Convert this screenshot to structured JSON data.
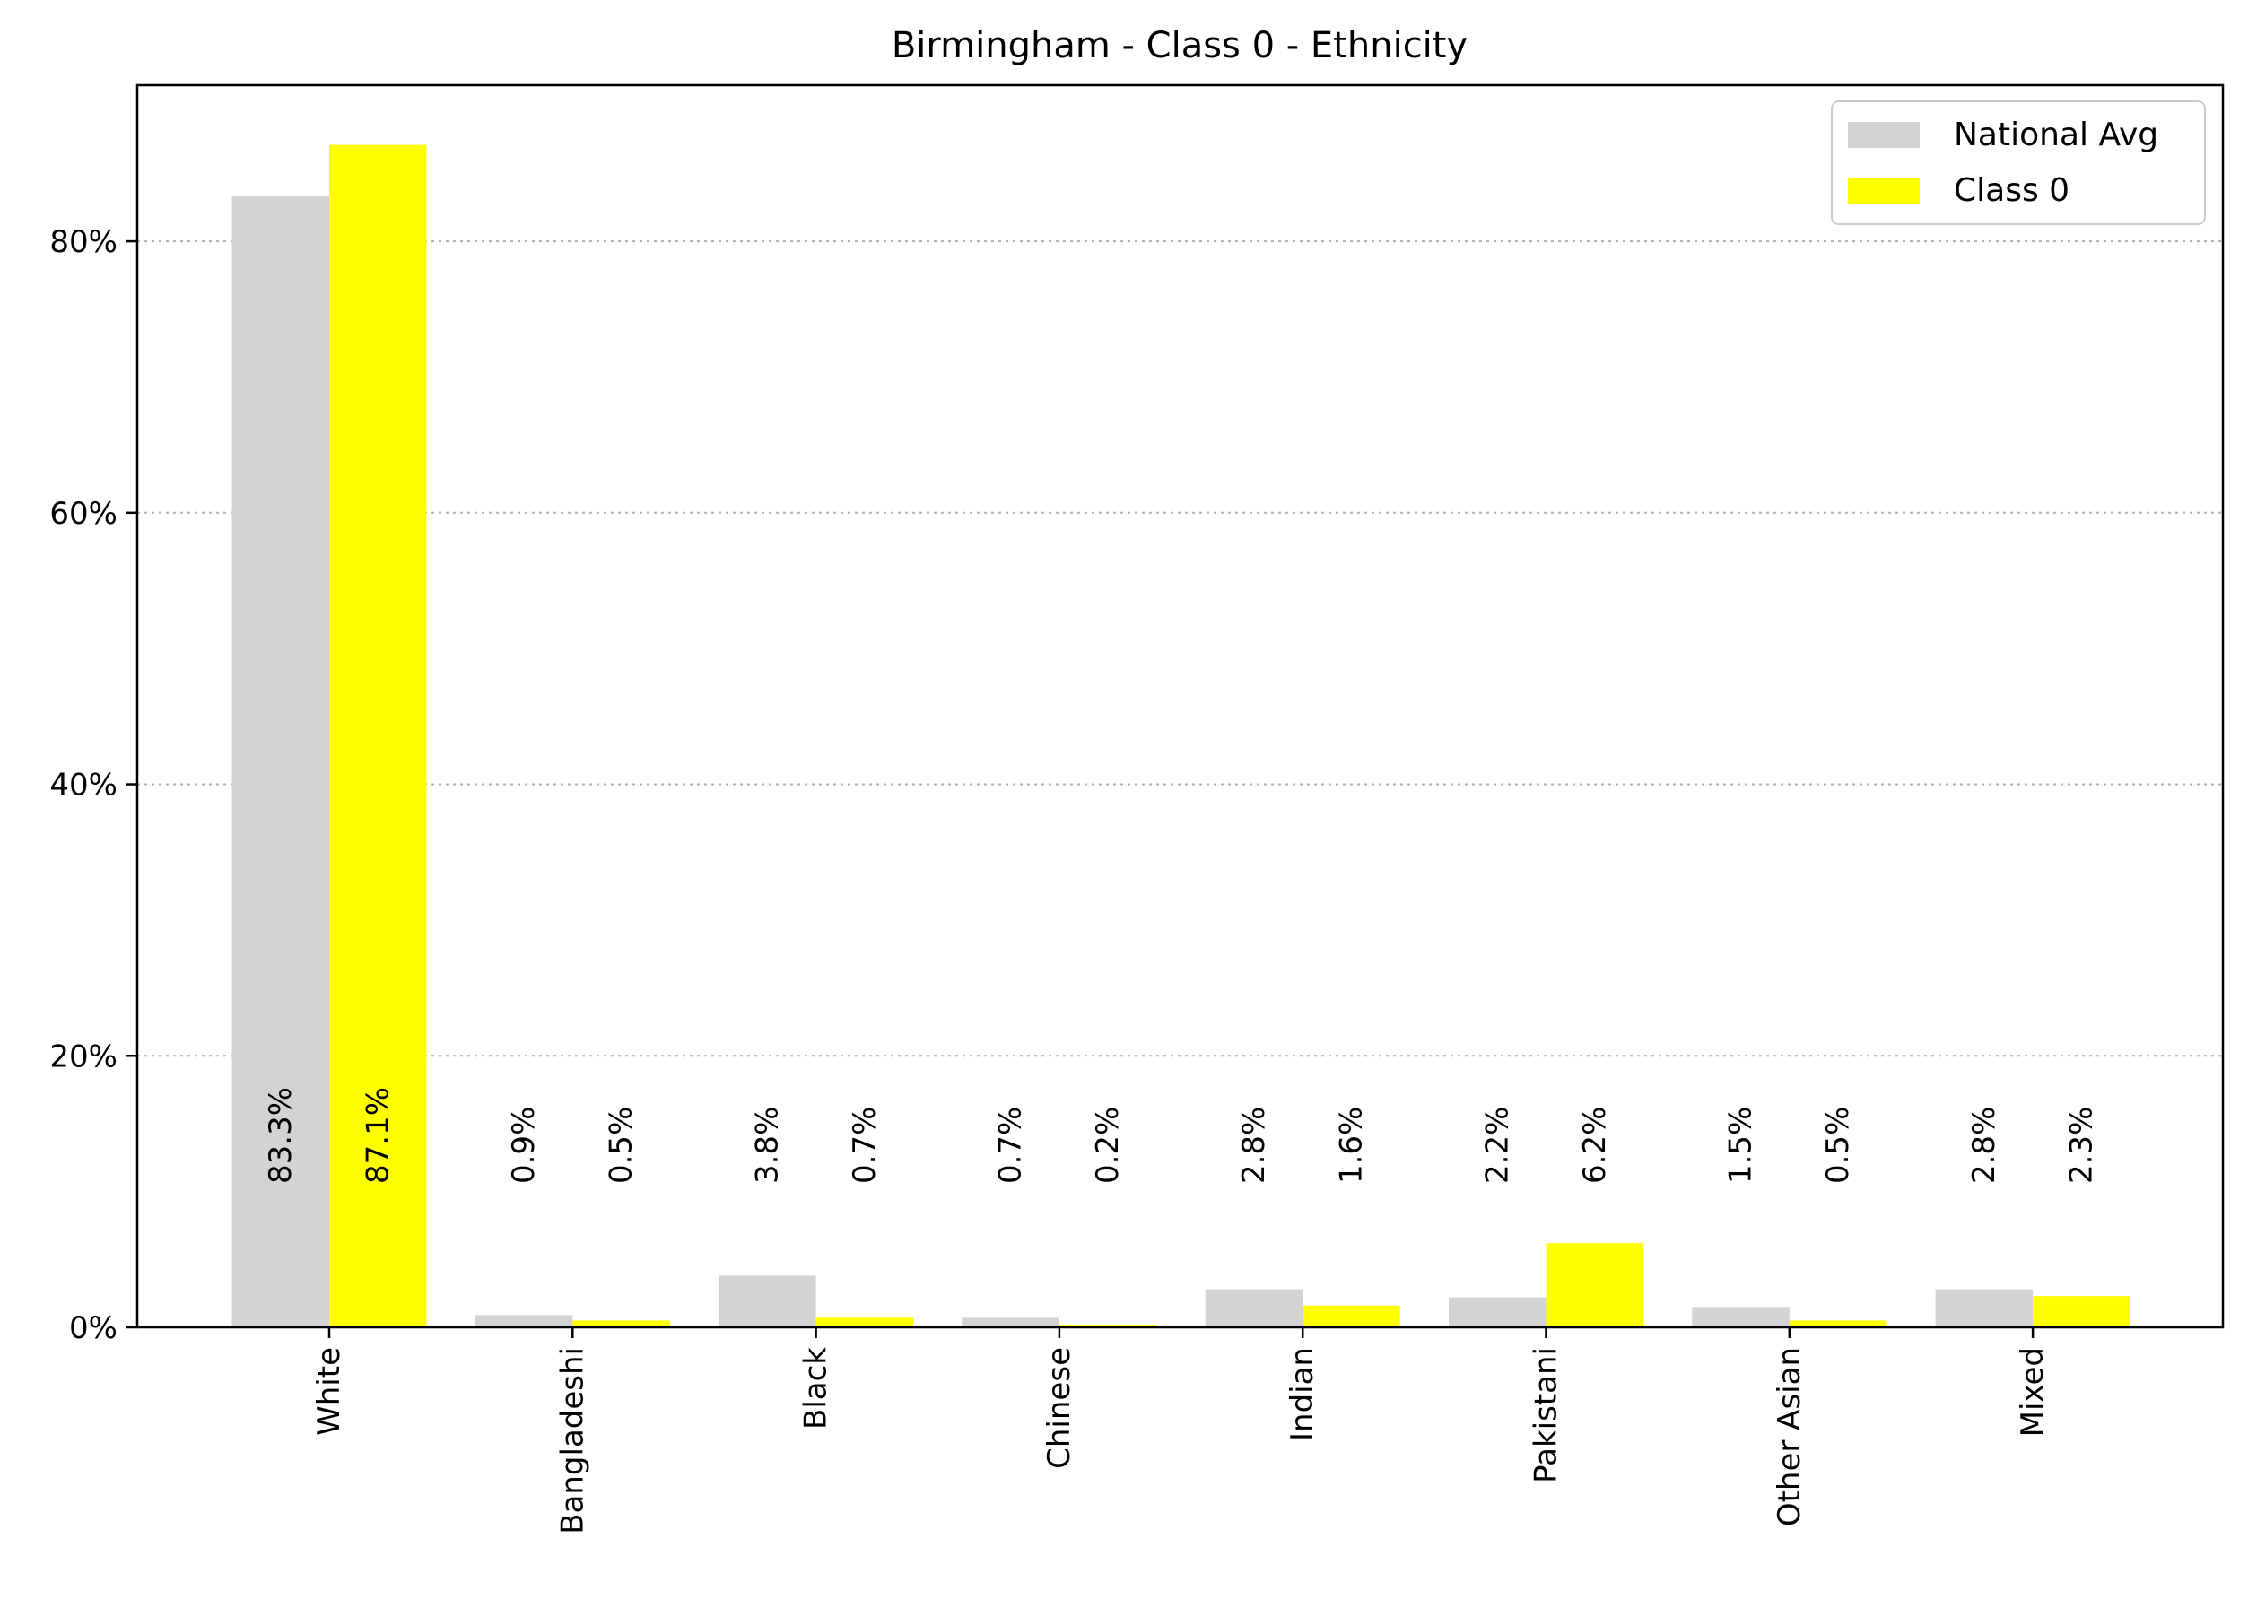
{
  "chart_data": {
    "type": "bar",
    "title": "Birmingham - Class 0 - Ethnicity",
    "xlabel": "",
    "ylabel": "",
    "categories": [
      "White",
      "Bangladeshi",
      "Black",
      "Chinese",
      "Indian",
      "Pakistani",
      "Other Asian",
      "Mixed"
    ],
    "series": [
      {
        "name": "National Avg",
        "color": "#d3d3d3",
        "values": [
          83.3,
          0.9,
          3.8,
          0.7,
          2.8,
          2.2,
          1.5,
          2.8
        ],
        "labels": [
          "83.3%",
          "0.9%",
          "3.8%",
          "0.7%",
          "2.8%",
          "2.2%",
          "1.5%",
          "2.8%"
        ]
      },
      {
        "name": "Class 0",
        "color": "#ffff00",
        "values": [
          87.1,
          0.5,
          0.7,
          0.2,
          1.6,
          6.2,
          0.5,
          2.3
        ],
        "labels": [
          "87.1%",
          "0.5%",
          "0.7%",
          "0.2%",
          "1.6%",
          "6.2%",
          "0.5%",
          "2.3%"
        ]
      }
    ],
    "ylim": [
      0,
      91.5
    ],
    "yticks": [
      0,
      20,
      40,
      60,
      80
    ],
    "ytick_labels": [
      "0%",
      "20%",
      "40%",
      "60%",
      "80%"
    ],
    "grid": "y-dotted",
    "legend_position": "top-right"
  }
}
